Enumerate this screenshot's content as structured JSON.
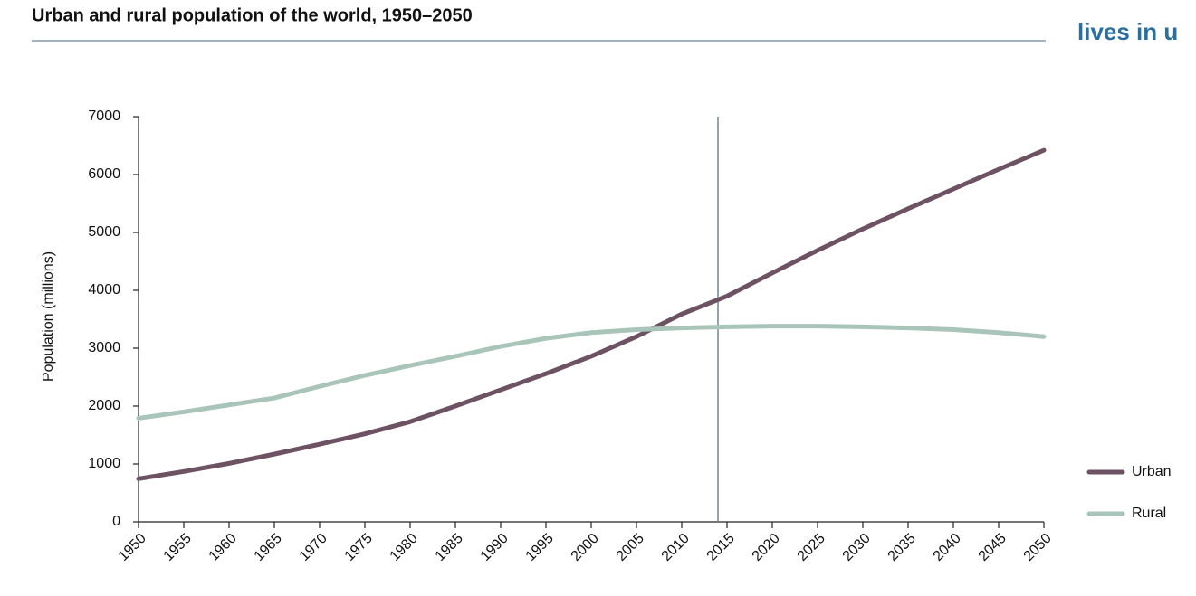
{
  "side_text": "lives in u",
  "chart_data": {
    "type": "line",
    "title": "Urban and rural population of the world, 1950–2050",
    "y_label": "Population (millions)",
    "x": [
      1950,
      1955,
      1960,
      1965,
      1970,
      1975,
      1980,
      1985,
      1990,
      1995,
      2000,
      2005,
      2010,
      2015,
      2020,
      2025,
      2030,
      2035,
      2040,
      2045,
      2050
    ],
    "series": [
      {
        "name": "Urban",
        "color": "#6c5262",
        "values": [
          745,
          870,
          1010,
          1170,
          1340,
          1520,
          1730,
          2000,
          2280,
          2560,
          2860,
          3200,
          3590,
          3900,
          4300,
          4690,
          5060,
          5410,
          5750,
          6090,
          6420
        ]
      },
      {
        "name": "Rural",
        "color": "#a9c5b9",
        "values": [
          1790,
          1900,
          2020,
          2140,
          2340,
          2530,
          2700,
          2860,
          3030,
          3170,
          3270,
          3320,
          3350,
          3370,
          3380,
          3380,
          3370,
          3350,
          3320,
          3270,
          3200
        ]
      }
    ],
    "xlim": [
      1950,
      2050
    ],
    "xticks": [
      1950,
      1955,
      1960,
      1965,
      1970,
      1975,
      1980,
      1985,
      1990,
      1995,
      2000,
      2005,
      2010,
      2015,
      2020,
      2025,
      2030,
      2035,
      2040,
      2045,
      2050
    ],
    "ylim": [
      0,
      7000
    ],
    "yticks": [
      0,
      1000,
      2000,
      3000,
      4000,
      5000,
      6000,
      7000
    ],
    "vline": 2014,
    "grid": false,
    "legend": "right"
  }
}
